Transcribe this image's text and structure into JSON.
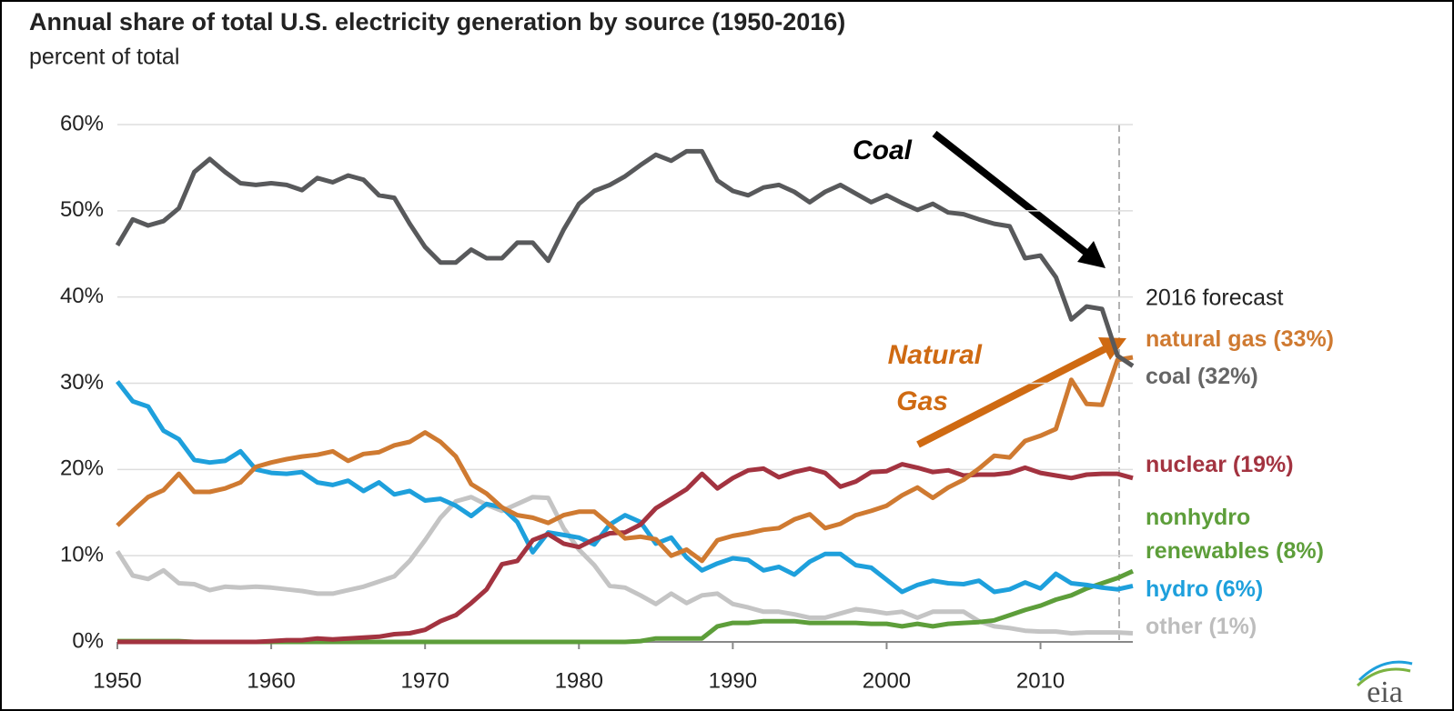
{
  "chart_data": {
    "type": "line",
    "title": "Annual share of total U.S. electricity generation by source (1950-2016)",
    "subtitle": "percent of total",
    "annotations": {
      "forecast": "2016 forecast",
      "coal": "Coal",
      "gas": [
        "Natural",
        "Gas"
      ]
    },
    "logo": "eia",
    "x": [
      1950,
      1951,
      1952,
      1953,
      1954,
      1955,
      1956,
      1957,
      1958,
      1959,
      1960,
      1961,
      1962,
      1963,
      1964,
      1965,
      1966,
      1967,
      1968,
      1969,
      1970,
      1971,
      1972,
      1973,
      1974,
      1975,
      1976,
      1977,
      1978,
      1979,
      1980,
      1981,
      1982,
      1983,
      1984,
      1985,
      1986,
      1987,
      1988,
      1989,
      1990,
      1991,
      1992,
      1993,
      1994,
      1995,
      1996,
      1997,
      1998,
      1999,
      2000,
      2001,
      2002,
      2003,
      2004,
      2005,
      2006,
      2007,
      2008,
      2009,
      2010,
      2011,
      2012,
      2013,
      2014,
      2015,
      2016
    ],
    "xlim": [
      1950,
      2016
    ],
    "xticks": [
      1950,
      1960,
      1970,
      1980,
      1990,
      2000,
      2010
    ],
    "ylim": [
      0,
      60
    ],
    "yticks": [
      {
        "value": 0,
        "label": "0%"
      },
      {
        "value": 10,
        "label": "10%"
      },
      {
        "value": 20,
        "label": "20%"
      },
      {
        "value": 30,
        "label": "30%"
      },
      {
        "value": 40,
        "label": "40%"
      },
      {
        "value": 50,
        "label": "50%"
      },
      {
        "value": 60,
        "label": "60%"
      }
    ],
    "grid": true,
    "series": [
      {
        "name": "other (1%)",
        "color": "#c4c4c4",
        "label_color": "#bdbdbd",
        "values": [
          10.5,
          7.7,
          7.3,
          8.3,
          6.8,
          6.7,
          6.0,
          6.4,
          6.3,
          6.4,
          6.3,
          6.1,
          5.9,
          5.6,
          5.6,
          6.0,
          6.4,
          7.0,
          7.6,
          9.4,
          11.8,
          14.4,
          16.3,
          16.8,
          15.9,
          15.2,
          16.0,
          16.8,
          16.7,
          13.2,
          10.7,
          8.9,
          6.5,
          6.3,
          5.4,
          4.4,
          5.6,
          4.5,
          5.4,
          5.6,
          4.4,
          4.0,
          3.5,
          3.5,
          3.2,
          2.8,
          2.8,
          3.3,
          3.8,
          3.6,
          3.3,
          3.5,
          2.8,
          3.5,
          3.5,
          3.5,
          2.4,
          1.8,
          1.6,
          1.3,
          1.2,
          1.2,
          1.0,
          1.1,
          1.1,
          1.1,
          1.0
        ]
      },
      {
        "name": "nonhydro renewables (8%)",
        "color": "#5d9e3a",
        "label_color": "#5d9e3a",
        "values": [
          0.1,
          0.1,
          0.1,
          0.1,
          0.1,
          0,
          0,
          0,
          0,
          0,
          0,
          0,
          0,
          0,
          0,
          0,
          0,
          0,
          0,
          0,
          0,
          0,
          0,
          0,
          0,
          0,
          0,
          0,
          0,
          0,
          0,
          0,
          0,
          0,
          0.1,
          0.4,
          0.4,
          0.4,
          0.4,
          1.8,
          2.2,
          2.2,
          2.4,
          2.4,
          2.4,
          2.2,
          2.2,
          2.2,
          2.2,
          2.1,
          2.1,
          1.8,
          2.1,
          1.8,
          2.1,
          2.2,
          2.3,
          2.5,
          3.1,
          3.7,
          4.2,
          4.9,
          5.4,
          6.2,
          6.8,
          7.4,
          8.2
        ]
      },
      {
        "name": "hydro (6%)",
        "color": "#1ea0dc",
        "label_color": "#1ea0dc",
        "values": [
          30.2,
          27.9,
          27.3,
          24.5,
          23.5,
          21.1,
          20.8,
          21.0,
          22.1,
          20.0,
          19.6,
          19.5,
          19.7,
          18.5,
          18.2,
          18.7,
          17.5,
          18.5,
          17.1,
          17.5,
          16.4,
          16.6,
          15.8,
          14.6,
          16.0,
          15.6,
          13.9,
          10.4,
          12.7,
          12.4,
          12.1,
          11.3,
          13.6,
          14.7,
          13.9,
          11.4,
          12.1,
          9.8,
          8.3,
          9.1,
          9.7,
          9.5,
          8.3,
          8.7,
          7.8,
          9.3,
          10.2,
          10.2,
          8.9,
          8.6,
          7.2,
          5.8,
          6.6,
          7.1,
          6.8,
          6.7,
          7.1,
          5.8,
          6.1,
          6.9,
          6.2,
          7.9,
          6.8,
          6.6,
          6.3,
          6.1,
          6.5
        ]
      },
      {
        "name": "nuclear (19%)",
        "color": "#a33340",
        "label_color": "#a33340",
        "values": [
          0,
          0,
          0,
          0,
          0,
          0,
          0,
          0,
          0,
          0,
          0.1,
          0.2,
          0.2,
          0.4,
          0.3,
          0.4,
          0.5,
          0.6,
          0.9,
          1.0,
          1.4,
          2.4,
          3.1,
          4.5,
          6.1,
          9.0,
          9.4,
          11.8,
          12.5,
          11.4,
          11.0,
          11.9,
          12.6,
          12.7,
          13.6,
          15.5,
          16.6,
          17.7,
          19.5,
          17.8,
          19.0,
          19.9,
          20.1,
          19.1,
          19.7,
          20.1,
          19.6,
          18.0,
          18.6,
          19.7,
          19.8,
          20.6,
          20.2,
          19.7,
          19.9,
          19.3,
          19.4,
          19.4,
          19.6,
          20.2,
          19.6,
          19.3,
          19.0,
          19.4,
          19.5,
          19.5,
          19.0
        ]
      },
      {
        "name": "natural gas (33%)",
        "color": "#cf7a31",
        "label_color": "#cf7a31",
        "values": [
          13.5,
          15.2,
          16.8,
          17.6,
          19.5,
          17.4,
          17.4,
          17.8,
          18.5,
          20.3,
          20.8,
          21.2,
          21.5,
          21.7,
          22.1,
          21.0,
          21.8,
          22.0,
          22.8,
          23.2,
          24.3,
          23.2,
          21.5,
          18.3,
          17.2,
          15.6,
          14.7,
          14.4,
          13.8,
          14.7,
          15.1,
          15.1,
          13.6,
          12.0,
          12.2,
          11.9,
          10.0,
          10.7,
          9.4,
          11.8,
          12.3,
          12.6,
          13.0,
          13.2,
          14.2,
          14.8,
          13.2,
          13.7,
          14.7,
          15.2,
          15.8,
          17.0,
          17.9,
          16.7,
          17.9,
          18.8,
          20.1,
          21.6,
          21.4,
          23.3,
          23.9,
          24.7,
          30.4,
          27.6,
          27.5,
          32.7,
          33.0
        ]
      },
      {
        "name": "coal (32%)",
        "color": "#58595b",
        "label_color": "#666666",
        "values": [
          46.0,
          49.0,
          48.3,
          48.8,
          50.3,
          54.5,
          56.0,
          54.5,
          53.2,
          53.0,
          53.2,
          53.0,
          52.4,
          53.8,
          53.3,
          54.1,
          53.6,
          51.8,
          51.5,
          48.5,
          45.8,
          44.0,
          44.0,
          45.5,
          44.5,
          44.5,
          46.3,
          46.3,
          44.2,
          47.8,
          50.8,
          52.3,
          53.0,
          54.0,
          55.3,
          56.5,
          55.8,
          56.9,
          56.9,
          53.5,
          52.3,
          51.8,
          52.7,
          53.0,
          52.2,
          51.0,
          52.2,
          53.0,
          52.0,
          51.0,
          51.8,
          50.9,
          50.1,
          50.8,
          49.8,
          49.6,
          49.0,
          48.5,
          48.2,
          44.5,
          44.8,
          42.3,
          37.4,
          38.9,
          38.6,
          33.2,
          32.0
        ]
      }
    ]
  }
}
